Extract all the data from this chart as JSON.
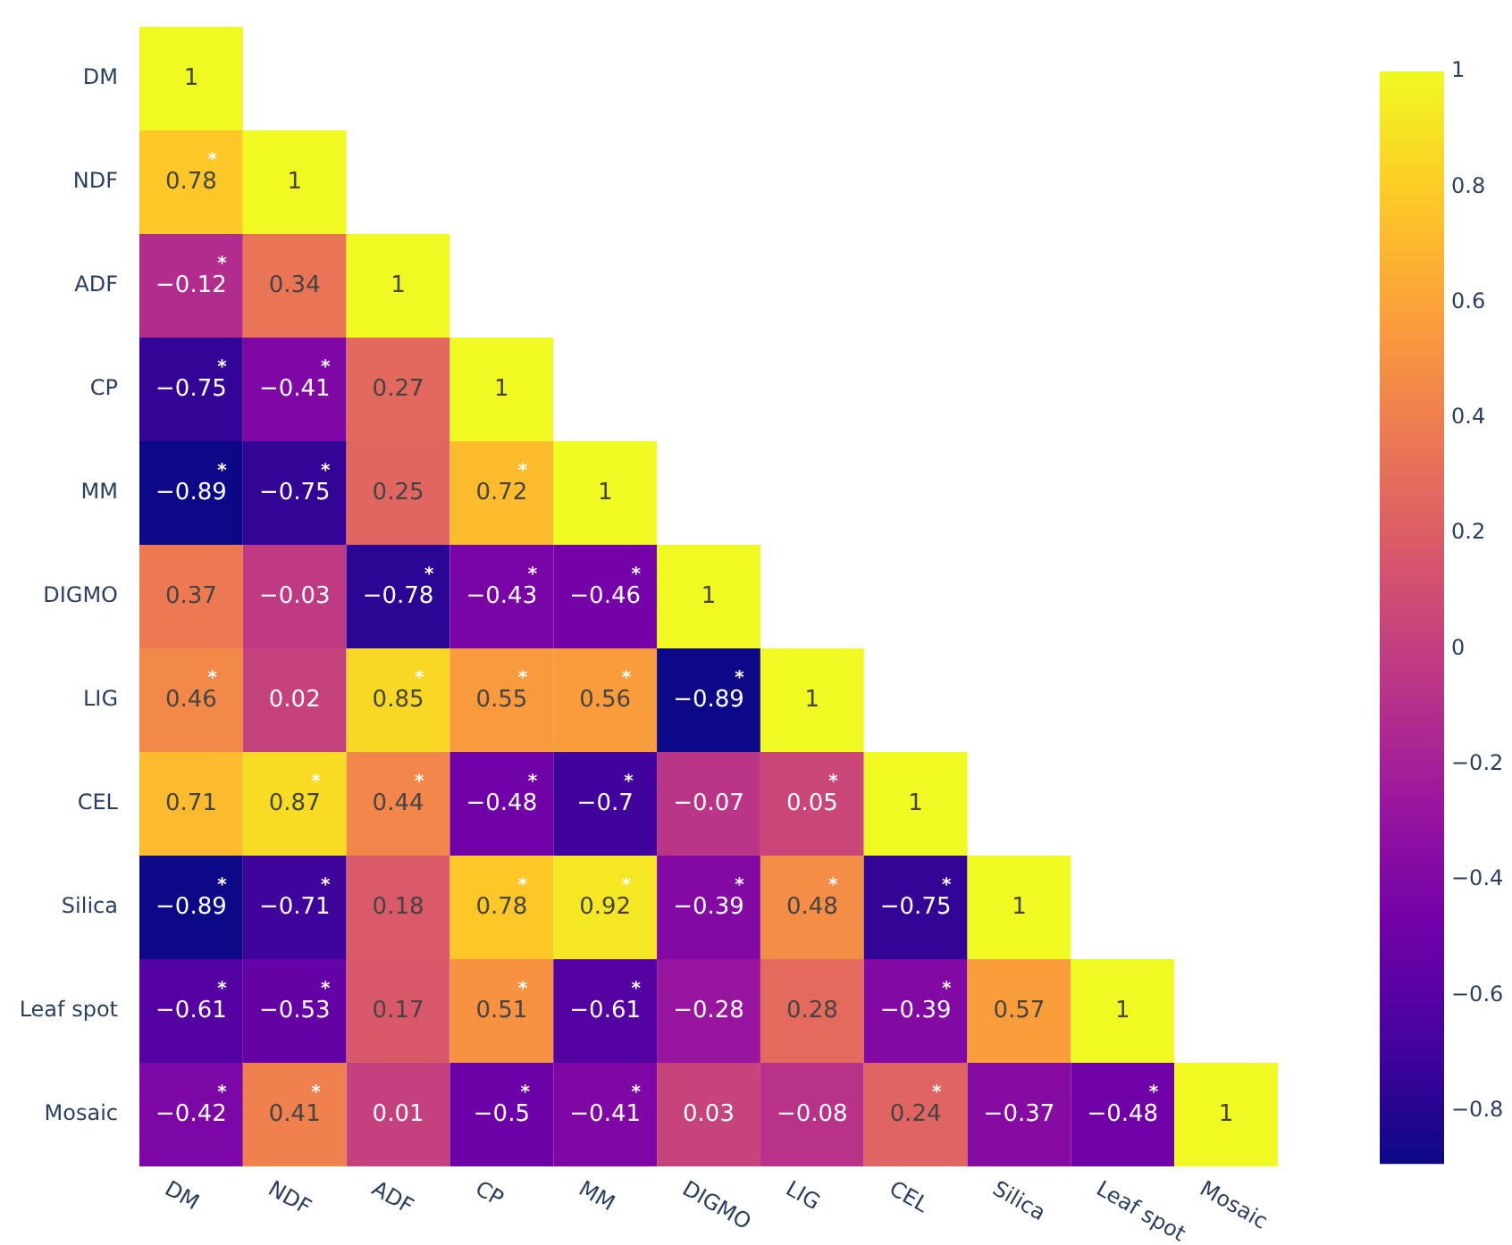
{
  "chart_data": {
    "type": "heatmap",
    "categories": [
      "DM",
      "NDF",
      "ADF",
      "CP",
      "MM",
      "DIGMO",
      "LIG",
      "CEL",
      "Silica",
      "Leaf spot",
      "Mosaic"
    ],
    "y_categories": [
      "DM",
      "NDF",
      "ADF",
      "CP",
      "MM",
      "DIGMO",
      "LIG",
      "CEL",
      "Silica",
      "Leaf spot",
      "Mosaic"
    ],
    "cells": [
      [
        1,
        null,
        null,
        null,
        null,
        null,
        null,
        null,
        null,
        null,
        null
      ],
      [
        0.78,
        1,
        null,
        null,
        null,
        null,
        null,
        null,
        null,
        null,
        null
      ],
      [
        -0.12,
        0.34,
        1,
        null,
        null,
        null,
        null,
        null,
        null,
        null,
        null
      ],
      [
        -0.75,
        -0.41,
        0.27,
        1,
        null,
        null,
        null,
        null,
        null,
        null,
        null
      ],
      [
        -0.89,
        -0.75,
        0.25,
        0.72,
        1,
        null,
        null,
        null,
        null,
        null,
        null
      ],
      [
        0.37,
        -0.03,
        -0.78,
        -0.43,
        -0.46,
        1,
        null,
        null,
        null,
        null,
        null
      ],
      [
        0.46,
        0.02,
        0.85,
        0.55,
        0.56,
        -0.89,
        1,
        null,
        null,
        null,
        null
      ],
      [
        0.71,
        0.87,
        0.44,
        -0.48,
        -0.7,
        -0.07,
        0.05,
        1,
        null,
        null,
        null
      ],
      [
        -0.89,
        -0.71,
        0.18,
        0.78,
        0.92,
        -0.39,
        0.48,
        -0.75,
        1,
        null,
        null
      ],
      [
        -0.61,
        -0.53,
        0.17,
        0.51,
        -0.61,
        -0.28,
        0.28,
        -0.39,
        0.57,
        1,
        null
      ],
      [
        -0.42,
        0.41,
        0.01,
        -0.5,
        -0.41,
        0.03,
        -0.08,
        0.24,
        -0.37,
        -0.48,
        1
      ]
    ],
    "cell_labels": [
      [
        "1",
        null,
        null,
        null,
        null,
        null,
        null,
        null,
        null,
        null,
        null
      ],
      [
        "0.78*",
        "1",
        null,
        null,
        null,
        null,
        null,
        null,
        null,
        null,
        null
      ],
      [
        "−0.12*",
        "0.34",
        "1",
        null,
        null,
        null,
        null,
        null,
        null,
        null,
        null
      ],
      [
        "−0.75*",
        "−0.41*",
        "0.27",
        "1",
        null,
        null,
        null,
        null,
        null,
        null,
        null
      ],
      [
        "−0.89*",
        "−0.75*",
        "0.25",
        "0.72*",
        "1",
        null,
        null,
        null,
        null,
        null,
        null
      ],
      [
        "0.37",
        "−0.03",
        "−0.78*",
        "−0.43*",
        "−0.46*",
        "1",
        null,
        null,
        null,
        null,
        null
      ],
      [
        "0.46*",
        "0.02",
        "0.85*",
        "0.55*",
        "0.56*",
        "−0.89*",
        "1",
        null,
        null,
        null,
        null
      ],
      [
        "0.71",
        "0.87*",
        "0.44*",
        "−0.48*",
        "−0.7*",
        "−0.07",
        "0.05*",
        "1",
        null,
        null,
        null
      ],
      [
        "−0.89*",
        "−0.71*",
        "0.18",
        "0.78*",
        "0.92*",
        "−0.39*",
        "0.48*",
        "−0.75*",
        "1",
        null,
        null
      ],
      [
        "−0.61*",
        "−0.53*",
        "0.17",
        "0.51*",
        "−0.61*",
        "−0.28",
        "0.28",
        "−0.39*",
        "0.57",
        "1",
        null
      ],
      [
        "−0.42*",
        "0.41*",
        "0.01",
        "−0.5*",
        "−0.41*",
        "0.03",
        "−0.08",
        "0.24*",
        "−0.37",
        "−0.48*",
        "1"
      ]
    ],
    "clim": [
      -0.89,
      1
    ],
    "cticks": [
      1,
      0.8,
      0.6,
      0.4,
      0.2,
      0,
      {
        "value": -0.2,
        "label": "−0.2"
      },
      {
        "value": -0.4,
        "label": "−0.4"
      },
      {
        "value": -0.6,
        "label": "−0.6"
      },
      {
        "value": -0.8,
        "label": "−0.8"
      }
    ]
  }
}
